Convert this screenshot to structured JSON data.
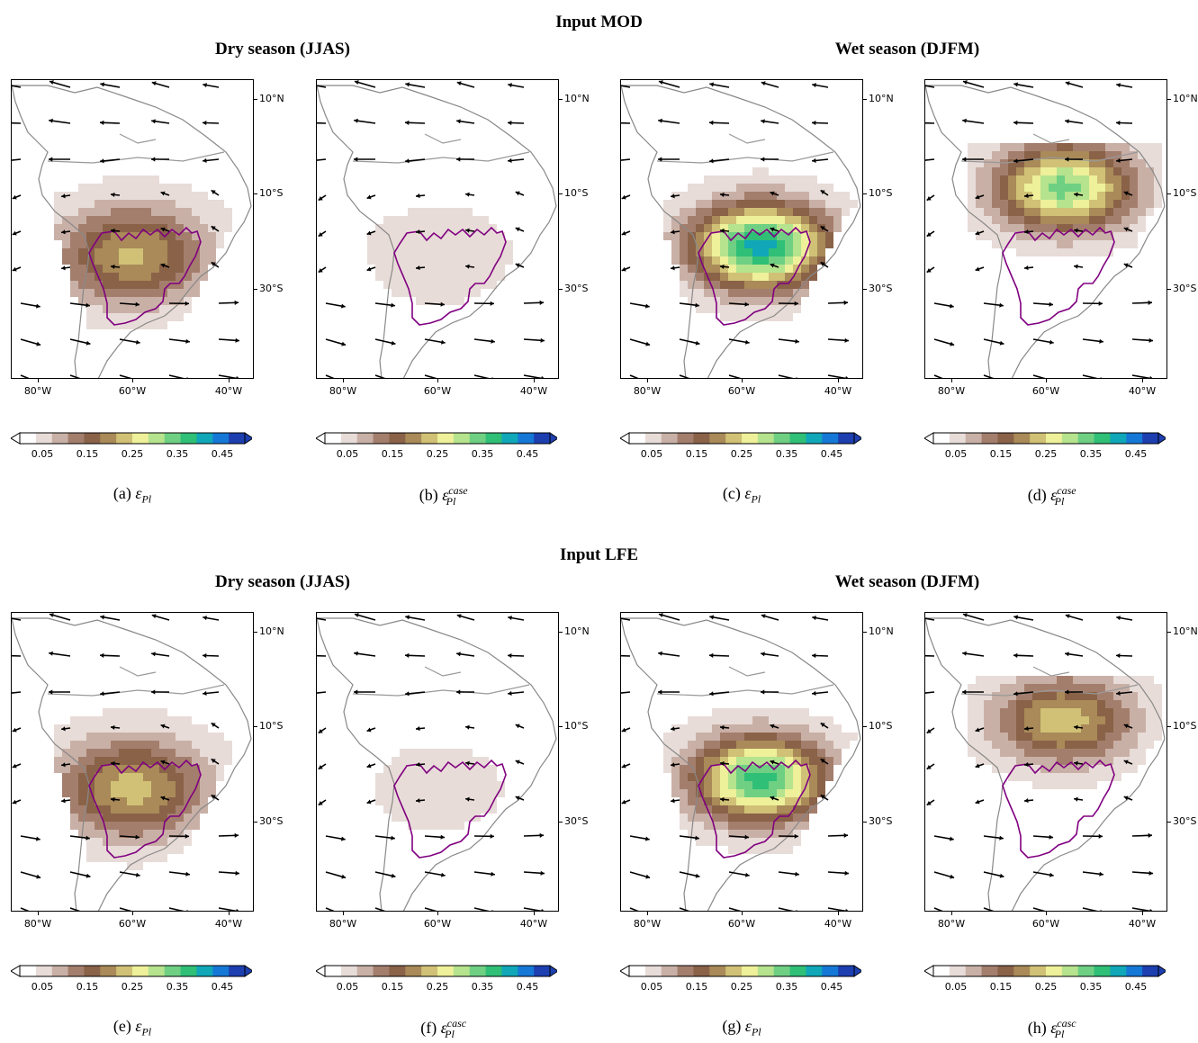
{
  "sections": [
    {
      "title": "Input MOD",
      "dry_title": "Dry season (JJAS)",
      "wet_title": "Wet season (DJFM)"
    },
    {
      "title": "Input LFE",
      "dry_title": "Dry season (JJAS)",
      "wet_title": "Wet season (DJFM)"
    }
  ],
  "lat_labels": [
    "10°N",
    "10°S",
    "30°S"
  ],
  "lon_labels": [
    "80°W",
    "60°W",
    "40°W"
  ],
  "colorbar": {
    "ticks": [
      "0.05",
      "0.15",
      "0.25",
      "0.35",
      "0.45"
    ],
    "colors": [
      "#ffffff",
      "#e8dcd8",
      "#c9b0a6",
      "#a47e6d",
      "#8a6248",
      "#a98a58",
      "#d0c176",
      "#eef09a",
      "#b6e38e",
      "#6fd083",
      "#2fbf77",
      "#10a7b8",
      "#1678d6",
      "#1d3fb0"
    ]
  },
  "panels": [
    {
      "letter": "(a)",
      "symbol": "ε",
      "sub": "Pl",
      "sup": "",
      "peak": 0.22,
      "domain": "dry-mod"
    },
    {
      "letter": "(b)",
      "symbol": "ε",
      "sub": "Pl",
      "sup": "case",
      "peak": 0.05,
      "domain": "dry-mod-case"
    },
    {
      "letter": "(c)",
      "symbol": "ε",
      "sub": "Pl",
      "sup": "",
      "peak": 0.42,
      "domain": "wet-mod"
    },
    {
      "letter": "(d)",
      "symbol": "ε",
      "sub": "Pl",
      "sup": "case",
      "peak": 0.34,
      "domain": "wet-mod-case"
    },
    {
      "letter": "(e)",
      "symbol": "ε",
      "sub": "Pl",
      "sup": "",
      "peak": 0.23,
      "domain": "dry-lfe"
    },
    {
      "letter": "(f)",
      "symbol": "ε",
      "sub": "Pl",
      "sup": "casc",
      "peak": 0.04,
      "domain": "dry-lfe-casc"
    },
    {
      "letter": "(g)",
      "symbol": "ε",
      "sub": "Pl",
      "sup": "",
      "peak": 0.38,
      "domain": "wet-lfe"
    },
    {
      "letter": "(h)",
      "symbol": "ε",
      "sub": "Pl",
      "sup": "casc",
      "peak": 0.24,
      "domain": "wet-lfe-casc"
    }
  ]
}
